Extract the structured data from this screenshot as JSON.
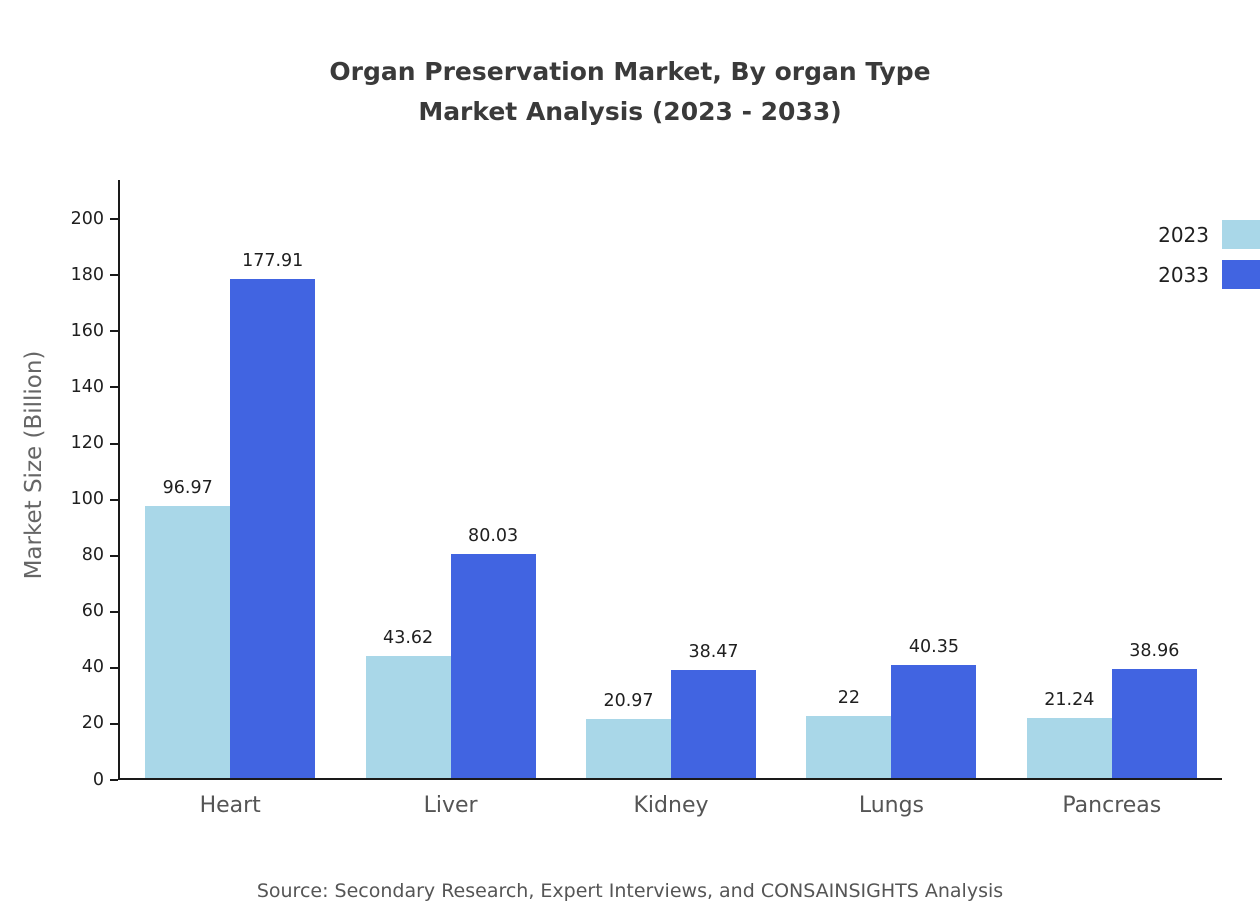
{
  "chart": {
    "title_line1": "Organ Preservation Market, By organ Type",
    "title_line2": "Market Analysis (2023 - 2033)",
    "ylabel": "Market Size (Billion)",
    "source": "Source: Secondary Research, Expert Interviews, and CONSAINSIGHTS Analysis"
  },
  "chart_data": {
    "type": "bar",
    "title": "Organ Preservation Market, By organ Type Market Analysis (2023 - 2033)",
    "categories": [
      "Heart",
      "Liver",
      "Kidney",
      "Lungs",
      "Pancreas"
    ],
    "series": [
      {
        "name": "2023",
        "color": "#a9d7e8",
        "values": [
          96.97,
          43.62,
          20.97,
          22,
          21.24
        ]
      },
      {
        "name": "2033",
        "color": "#4164e1",
        "values": [
          177.91,
          80.03,
          38.47,
          40.35,
          38.96
        ]
      }
    ],
    "xlabel": "",
    "ylabel": "Market Size (Billion)",
    "ylim": [
      0,
      214
    ],
    "yticks": [
      0,
      20,
      40,
      60,
      80,
      100,
      120,
      140,
      160,
      180,
      200
    ],
    "grid": false,
    "legend_position": "top-right"
  }
}
